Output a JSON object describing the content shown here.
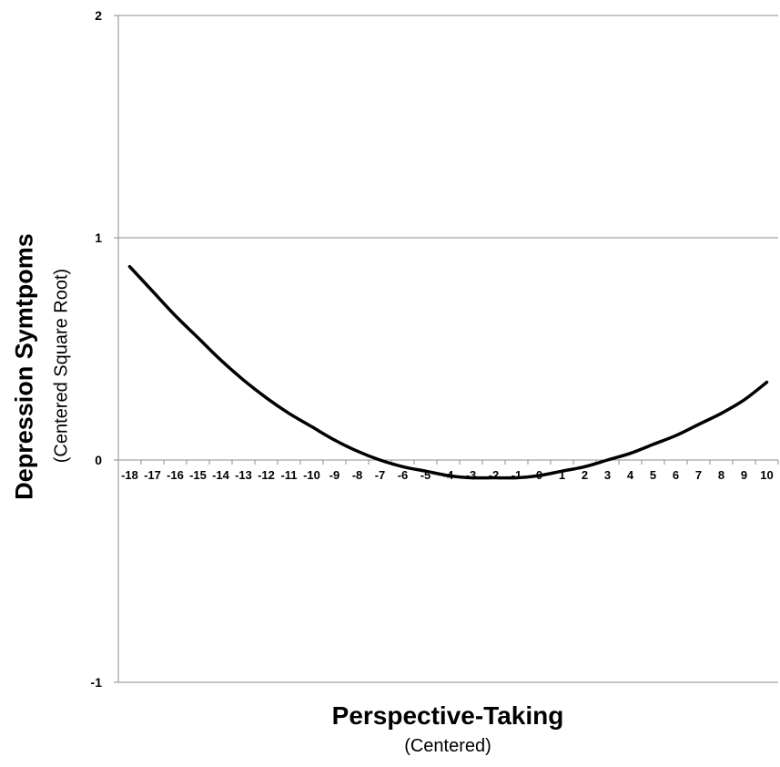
{
  "chart_data": {
    "type": "line",
    "xlabel": "Perspective-Taking",
    "xlabel_sub": "(Centered)",
    "ylabel": "Depression Symtpoms",
    "ylabel_sub": "(Centered Square Root)",
    "xlim": [
      -18,
      10
    ],
    "ylim": [
      -1,
      2
    ],
    "x_ticks": [
      -18,
      -17,
      -16,
      -15,
      -14,
      -13,
      -12,
      -11,
      -10,
      -9,
      -8,
      -7,
      -6,
      -5,
      -4,
      -3,
      -2,
      -1,
      0,
      1,
      2,
      3,
      4,
      5,
      6,
      7,
      8,
      9,
      10
    ],
    "y_ticks": [
      -1,
      0,
      1,
      2
    ],
    "grid": "horizontal",
    "line_color": "#000000",
    "series": [
      {
        "x": [
          -18,
          -17,
          -16,
          -15,
          -14,
          -13,
          -12,
          -11,
          -10,
          -9,
          -8,
          -7,
          -6,
          -5,
          -4,
          -3,
          -2,
          -1,
          0,
          1,
          2,
          3,
          4,
          5,
          6,
          7,
          8,
          9,
          10
        ],
        "values": [
          0.87,
          0.76,
          0.65,
          0.55,
          0.45,
          0.36,
          0.28,
          0.21,
          0.15,
          0.09,
          0.04,
          0.0,
          -0.03,
          -0.05,
          -0.07,
          -0.08,
          -0.08,
          -0.08,
          -0.07,
          -0.05,
          -0.03,
          0.0,
          0.03,
          0.07,
          0.11,
          0.16,
          0.21,
          0.27,
          0.35
        ]
      }
    ]
  }
}
